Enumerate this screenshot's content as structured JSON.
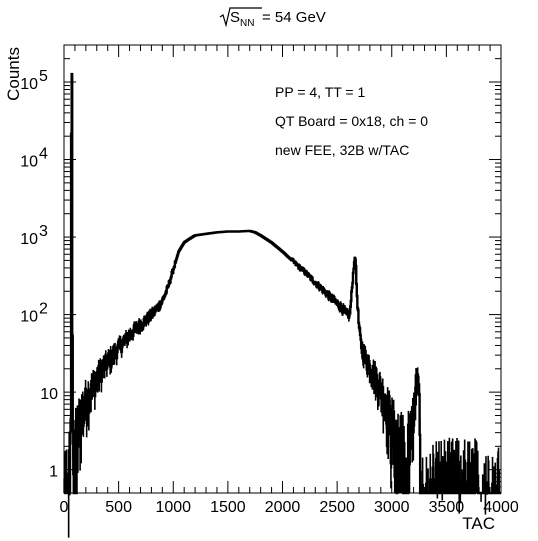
{
  "chart_data": {
    "type": "line",
    "title": {
      "symbol": "S",
      "subscript": "NN",
      "suffix": "= 54 GeV"
    },
    "xlabel": "TAC",
    "ylabel": "Counts",
    "x_scale": "linear",
    "y_scale": "log",
    "xlim": [
      0,
      4000
    ],
    "ylim": [
      0.5,
      300000
    ],
    "grid": false,
    "legend": "none",
    "annotations": [
      "PP = 4, TT = 1",
      "QT Board = 0x18, ch = 0",
      "new FEE, 32B w/TAC"
    ],
    "x_ticks": [
      {
        "value": 0,
        "label": "0"
      },
      {
        "value": 500,
        "label": "500"
      },
      {
        "value": 1000,
        "label": "1000"
      },
      {
        "value": 1500,
        "label": "1500"
      },
      {
        "value": 2000,
        "label": "2000"
      },
      {
        "value": 2500,
        "label": "2500"
      },
      {
        "value": 3000,
        "label": "3000"
      },
      {
        "value": 3500,
        "label": "3500"
      },
      {
        "value": 4000,
        "label": "4000"
      }
    ],
    "y_ticks": [
      {
        "value": 1,
        "label": "1"
      },
      {
        "value": 10,
        "label": "10"
      },
      {
        "value": 100,
        "label": "10",
        "exp": "2"
      },
      {
        "value": 1000,
        "label": "10",
        "exp": "3"
      },
      {
        "value": 10000,
        "label": "10",
        "exp": "4"
      },
      {
        "value": 100000,
        "label": "10",
        "exp": "5"
      }
    ],
    "series": [
      {
        "color": "#000000",
        "points": [
          [
            40,
            0.5
          ],
          [
            55,
            1.5
          ],
          [
            60,
            3
          ],
          [
            65,
            10
          ],
          [
            68,
            100000
          ],
          [
            71,
            160000
          ],
          [
            74,
            100000
          ],
          [
            77,
            100
          ],
          [
            80,
            3
          ],
          [
            85,
            1
          ],
          [
            90,
            1.2
          ],
          [
            100,
            2
          ],
          [
            120,
            3
          ],
          [
            150,
            5
          ],
          [
            200,
            8
          ],
          [
            250,
            11
          ],
          [
            300,
            15
          ],
          [
            350,
            20
          ],
          [
            400,
            25
          ],
          [
            450,
            30
          ],
          [
            500,
            38
          ],
          [
            550,
            45
          ],
          [
            600,
            55
          ],
          [
            650,
            65
          ],
          [
            700,
            75
          ],
          [
            750,
            85
          ],
          [
            800,
            100
          ],
          [
            850,
            120
          ],
          [
            900,
            150
          ],
          [
            950,
            220
          ],
          [
            1000,
            380
          ],
          [
            1050,
            650
          ],
          [
            1100,
            850
          ],
          [
            1150,
            950
          ],
          [
            1200,
            1050
          ],
          [
            1300,
            1100
          ],
          [
            1400,
            1150
          ],
          [
            1500,
            1180
          ],
          [
            1600,
            1180
          ],
          [
            1700,
            1200
          ],
          [
            1750,
            1150
          ],
          [
            1800,
            1050
          ],
          [
            1900,
            850
          ],
          [
            2000,
            650
          ],
          [
            2100,
            480
          ],
          [
            2200,
            360
          ],
          [
            2300,
            260
          ],
          [
            2400,
            190
          ],
          [
            2500,
            140
          ],
          [
            2550,
            120
          ],
          [
            2600,
            95
          ],
          [
            2620,
            110
          ],
          [
            2640,
            250
          ],
          [
            2660,
            550
          ],
          [
            2670,
            500
          ],
          [
            2680,
            200
          ],
          [
            2700,
            70
          ],
          [
            2720,
            40
          ],
          [
            2750,
            30
          ],
          [
            2800,
            22
          ],
          [
            2850,
            16
          ],
          [
            2900,
            11
          ],
          [
            2950,
            7
          ],
          [
            3000,
            4
          ],
          [
            3050,
            2.5
          ],
          [
            3100,
            1.8
          ],
          [
            3150,
            2
          ],
          [
            3180,
            3
          ],
          [
            3200,
            6
          ],
          [
            3220,
            12
          ],
          [
            3240,
            14
          ],
          [
            3255,
            8
          ],
          [
            3265,
            2
          ],
          [
            3280,
            0.5
          ],
          [
            4000,
            0.5
          ]
        ]
      }
    ]
  }
}
